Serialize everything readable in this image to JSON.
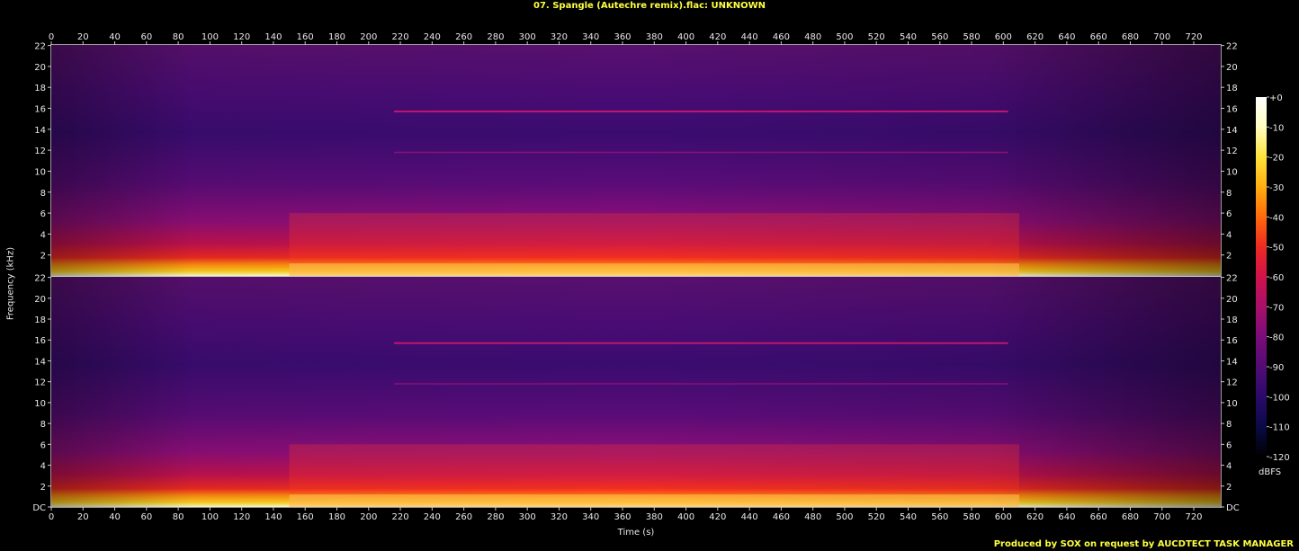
{
  "title": "07. Spangle (Autechre remix).flac: UNKNOWN",
  "footer": "Produced by SOX on request by AUCDTECT TASK MANAGER",
  "chart_data": {
    "type": "heatmap",
    "title": "07. Spangle (Autechre remix).flac: UNKNOWN",
    "xlabel": "Time (s)",
    "ylabel": "Frequency (kHz)",
    "x_ticks": [
      0,
      20,
      40,
      60,
      80,
      100,
      120,
      140,
      160,
      180,
      200,
      220,
      240,
      260,
      280,
      300,
      320,
      340,
      360,
      380,
      400,
      420,
      440,
      460,
      480,
      500,
      520,
      540,
      560,
      580,
      600,
      620,
      640,
      660,
      680,
      700,
      720
    ],
    "xlim": [
      0,
      737
    ],
    "y_ticks": [
      "DC",
      "2",
      "4",
      "6",
      "8",
      "10",
      "12",
      "14",
      "16",
      "18",
      "20",
      "22"
    ],
    "ylim_khz": [
      0,
      22.05
    ],
    "channels": 2,
    "colorbar": {
      "unit": "dBFS",
      "ticks": [
        "+0",
        "-10",
        "-20",
        "-30",
        "-40",
        "-50",
        "-60",
        "-70",
        "-80",
        "-90",
        "-100",
        "-110",
        "-120"
      ],
      "range": [
        -120,
        0
      ]
    },
    "features": {
      "tone_16k": {
        "freq_khz": 15.7,
        "start_s": 216,
        "end_s": 603
      },
      "tone_12k": {
        "freq_khz": 11.8,
        "start_s": 216,
        "end_s": 603
      },
      "loud_section": {
        "start_s": 150,
        "end_s": 610
      }
    }
  },
  "colors": {
    "background": "#000000",
    "title": "#ffff40",
    "axis_text": "#e8e8e8",
    "colormap": [
      "#000000",
      "#0a0a46",
      "#2a0a6a",
      "#520c74",
      "#7a0c78",
      "#a8106a",
      "#d0124a",
      "#ee2a22",
      "#ff6a0a",
      "#ffae10",
      "#ffe23a",
      "#fffcc0",
      "#ffffff"
    ]
  }
}
